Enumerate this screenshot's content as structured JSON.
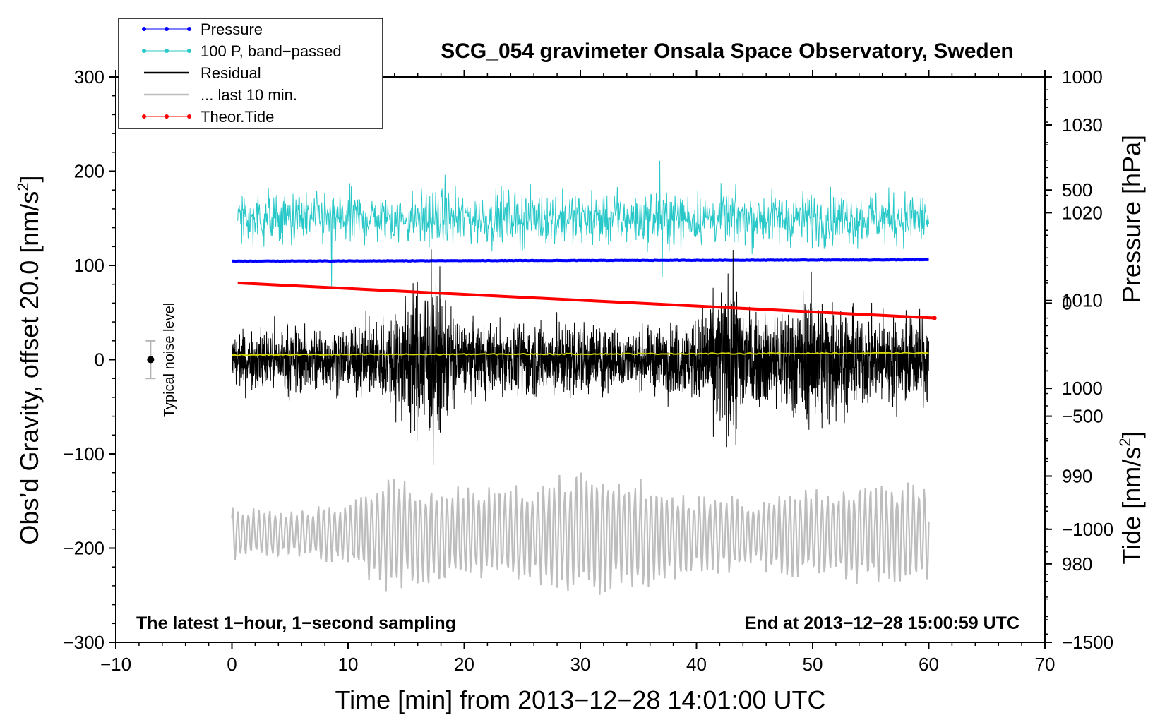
{
  "chart_data": {
    "type": "line",
    "title": "SCG_054 gravimeter Onsala Space Observatory, Sweden",
    "xlabel": "Time [min] from 2013−12−28 14:01:00 UTC",
    "ylabel": "Obs’d Gravity, offset 20.0 [nm/s²]",
    "ylabel_parts": [
      "Obs’d Gravity, offset 20.0 [nm/s",
      "2",
      "]"
    ],
    "y2label": "Pressure [hPa]",
    "y3label_parts": [
      "Tide [nm/s",
      "2",
      "]"
    ],
    "xlim": [
      -10,
      70
    ],
    "ylim": [
      -300,
      300
    ],
    "pressure_axis_range": [
      971.06,
      1035.47
    ],
    "tide_axis_range": [
      -1500,
      1000
    ],
    "grid": false,
    "legend_position": "top-left",
    "annotation_left": "The latest 1−hour, 1−second sampling",
    "annotation_right": "End at 2013−12−28 15:00:59 UTC",
    "noise_label": "Typical noise level",
    "noise_bar": {
      "x": -7,
      "center": 0,
      "half_range": 20
    },
    "x_ticks": [
      {
        "value": -10,
        "label": "−10"
      },
      {
        "value": 0,
        "label": "0"
      },
      {
        "value": 10,
        "label": "10"
      },
      {
        "value": 20,
        "label": "20"
      },
      {
        "value": 30,
        "label": "30"
      },
      {
        "value": 40,
        "label": "40"
      },
      {
        "value": 50,
        "label": "50"
      },
      {
        "value": 60,
        "label": "60"
      },
      {
        "value": 70,
        "label": "70"
      }
    ],
    "y_ticks": [
      {
        "value": 300,
        "label": "300"
      },
      {
        "value": 200,
        "label": "200"
      },
      {
        "value": 100,
        "label": "100"
      },
      {
        "value": 0,
        "label": "0"
      },
      {
        "value": -100,
        "label": "−100"
      },
      {
        "value": -200,
        "label": "−200"
      },
      {
        "value": -300,
        "label": "−300"
      }
    ],
    "pressure_ticks": [
      {
        "value": 980,
        "label": "980"
      },
      {
        "value": 990,
        "label": "990"
      },
      {
        "value": 1000,
        "label": "1000"
      },
      {
        "value": 1010,
        "label": "1010"
      },
      {
        "value": 1020,
        "label": "1020"
      },
      {
        "value": 1030,
        "label": "1030"
      }
    ],
    "tide_ticks": [
      {
        "value": 1000,
        "label": "1000"
      },
      {
        "value": 500,
        "label": "500"
      },
      {
        "value": 0,
        "label": "0"
      },
      {
        "value": -500,
        "label": "−500"
      },
      {
        "value": -1000,
        "label": "−1000"
      },
      {
        "value": -1500,
        "label": "−1500"
      }
    ],
    "legend": [
      {
        "label": "Pressure",
        "color": "#0000ff",
        "marker": true,
        "width": 1
      },
      {
        "label": "100 P, band−passed",
        "color": "#28c8c8",
        "marker": true,
        "width": 1
      },
      {
        "label": "Residual",
        "color": "#000000",
        "marker": false,
        "width": 2.5
      },
      {
        "label": "... last 10 min.",
        "color": "#bdbdbd",
        "marker": false,
        "width": 2.5
      },
      {
        "label": "Theor.Tide",
        "color": "#ff0000",
        "marker": true,
        "width": 1
      }
    ],
    "series": [
      {
        "name": "Pressure",
        "axis": "left",
        "color": "#0000ff",
        "x_range": [
          0,
          60
        ],
        "y_start": 104.5,
        "y_end": 106,
        "noise": 0.5
      },
      {
        "name": "100 P, band−passed",
        "axis": "left",
        "color": "#28c8c8",
        "x_range": [
          0.5,
          60
        ],
        "y_center": 150,
        "amplitude": 22,
        "min": 78,
        "max": 211
      },
      {
        "name": "Residual",
        "axis": "left",
        "color": "#000000",
        "x_range": [
          0,
          60
        ],
        "y_center": 0,
        "envelope": [
          [
            0,
            35
          ],
          [
            5,
            45
          ],
          [
            10,
            40
          ],
          [
            13,
            55
          ],
          [
            17,
            115
          ],
          [
            20,
            45
          ],
          [
            30,
            50
          ],
          [
            35,
            35
          ],
          [
            40,
            55
          ],
          [
            43,
            110
          ],
          [
            45,
            55
          ],
          [
            50,
            90
          ],
          [
            55,
            55
          ],
          [
            60,
            60
          ]
        ],
        "min": -112,
        "max": 117
      },
      {
        "name": "Residual smoothed",
        "axis": "left",
        "color": "#d4d400",
        "x_range": [
          0,
          60
        ],
        "y_start": 5,
        "y_end": 7
      },
      {
        "name": "... last 10 min.",
        "axis": "left",
        "color": "#bdbdbd",
        "x_range": [
          0,
          60
        ],
        "y_center": -185,
        "envelope": [
          [
            0,
            30
          ],
          [
            5,
            25
          ],
          [
            10,
            35
          ],
          [
            13,
            65
          ],
          [
            20,
            50
          ],
          [
            25,
            55
          ],
          [
            30,
            70
          ],
          [
            35,
            60
          ],
          [
            40,
            45
          ],
          [
            45,
            40
          ],
          [
            48,
            50
          ],
          [
            55,
            55
          ],
          [
            60,
            55
          ]
        ],
        "min": -270,
        "max": -97
      },
      {
        "name": "Theor.Tide",
        "axis": "tide",
        "color": "#ff0000",
        "x_range": [
          0.5,
          60.5
        ],
        "y_start": 89,
        "y_end": -66
      }
    ]
  }
}
